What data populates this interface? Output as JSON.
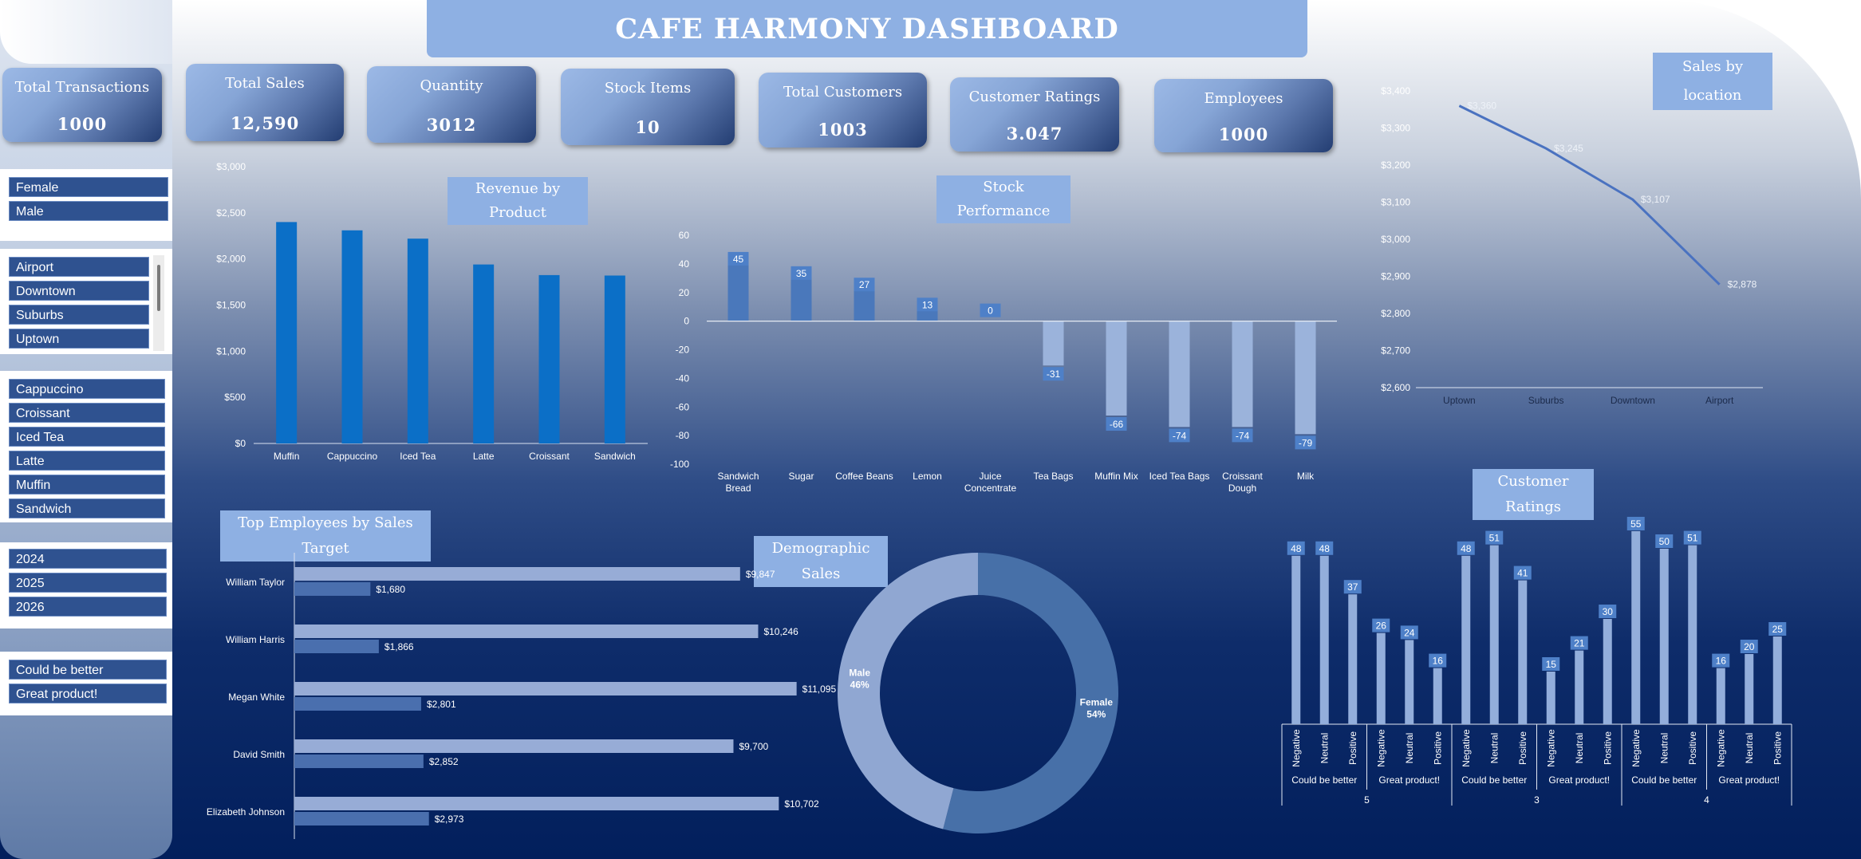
{
  "dashboard": {
    "title": "CAFE HARMONY DASHBOARD",
    "kpis": [
      {
        "label": "Total Transactions",
        "value": "1000"
      },
      {
        "label": "Total Sales",
        "value": "12,590"
      },
      {
        "label": "Quantity",
        "value": "3012"
      },
      {
        "label": "Stock Items",
        "value": "10"
      },
      {
        "label": "Total Customers",
        "value": "1003"
      },
      {
        "label": "Customer Ratings",
        "value": "3.047"
      },
      {
        "label": "Employees",
        "value": "1000"
      }
    ]
  },
  "slicers": {
    "gender": [
      "Female",
      "Male"
    ],
    "location": [
      "Airport",
      "Downtown",
      "Suburbs",
      "Uptown"
    ],
    "product": [
      "Cappuccino",
      "Croissant",
      "Iced Tea",
      "Latte",
      "Muffin",
      "Sandwich"
    ],
    "year": [
      "2024",
      "2025",
      "2026"
    ],
    "feedback": [
      "Could be better",
      "Great product!"
    ]
  },
  "colors": {
    "bar_blue": "#0b6fc7",
    "stock_pos": "#4a78bb",
    "stock_neg": "#9bb3db",
    "label_box": "#4e80c8",
    "line": "#4a72c0",
    "emp_target": "#97acd6",
    "emp_sales": "#4a6fae",
    "donut_female": "#4770a8",
    "donut_male": "#90a7d2",
    "ratings_bar": "#93aedb"
  },
  "chart_data": [
    {
      "type": "bar",
      "title": "Revenue by Product",
      "categories": [
        "Muffin",
        "Cappuccino",
        "Iced Tea",
        "Latte",
        "Croissant",
        "Sandwich"
      ],
      "values": [
        2400,
        2310,
        2220,
        1940,
        1825,
        1820
      ],
      "ylim": [
        0,
        3000
      ],
      "yticks": [
        "$0",
        "$500",
        "$1,000",
        "$1,500",
        "$2,000",
        "$2,500",
        "$3,000"
      ]
    },
    {
      "type": "bar",
      "title": "Stock Performance",
      "categories": [
        "Sandwich Bread",
        "Sugar",
        "Coffee Beans",
        "Lemon",
        "Juice Concentrate",
        "Tea Bags",
        "Muffin Mix",
        "Iced Tea Bags",
        "Croissant Dough",
        "Milk"
      ],
      "values": [
        45,
        35,
        27,
        13,
        0,
        -31,
        -66,
        -74,
        -74,
        -79
      ],
      "ylim": [
        -100,
        60
      ],
      "yticks": [
        "-100",
        "-80",
        "-60",
        "-40",
        "-20",
        "0",
        "20",
        "40",
        "60"
      ]
    },
    {
      "type": "line",
      "title": "Sales by location",
      "categories": [
        "Uptown",
        "Suburbs",
        "Downtown",
        "Airport"
      ],
      "values": [
        3360,
        3245,
        3107,
        2878
      ],
      "labels": [
        "$3,360",
        "$3,245",
        "$3,107",
        "$2,878"
      ],
      "ylim": [
        2600,
        3400
      ],
      "yticks": [
        "$2,600",
        "$2,700",
        "$2,800",
        "$2,900",
        "$3,000",
        "$3,100",
        "$3,200",
        "$3,300",
        "$3,400"
      ]
    },
    {
      "type": "bar",
      "title": "Top Employees by Sales Target",
      "categories": [
        "William Taylor",
        "William Harris",
        "Megan White",
        "David Smith",
        "Elizabeth Johnson"
      ],
      "series": [
        {
          "values": [
            9847,
            10246,
            11095,
            9700,
            10702
          ],
          "labels": [
            "$9,847",
            "$10,246",
            "$11,095",
            "$9,700",
            "$10,702"
          ]
        },
        {
          "values": [
            1680,
            1866,
            2801,
            2852,
            2973
          ],
          "labels": [
            "$1,680",
            "$1,866",
            "$2,801",
            "$2,852",
            "$2,973"
          ]
        }
      ],
      "xlim": [
        0,
        12000
      ]
    },
    {
      "type": "pie",
      "title": "Demographic Sales",
      "slices": [
        {
          "label": "Female",
          "pct_label": "54%",
          "value": 54
        },
        {
          "label": "Male",
          "pct_label": "46%",
          "value": 46
        }
      ]
    },
    {
      "type": "bar",
      "title": "Customer Ratings",
      "groups": [
        {
          "rating": "5",
          "feedback": [
            "Could be better",
            "Great product!"
          ]
        },
        {
          "rating": "3",
          "feedback": [
            "Could be better",
            "Great product!"
          ]
        },
        {
          "rating": "4",
          "feedback": [
            "Could be better",
            "Great product!"
          ]
        }
      ],
      "sentiments": [
        "Negative",
        "Neutral",
        "Positive"
      ],
      "values": [
        48,
        48,
        37,
        26,
        24,
        16,
        48,
        51,
        41,
        15,
        21,
        30,
        55,
        50,
        51,
        16,
        20,
        25
      ],
      "ylim": [
        0,
        55
      ]
    }
  ]
}
